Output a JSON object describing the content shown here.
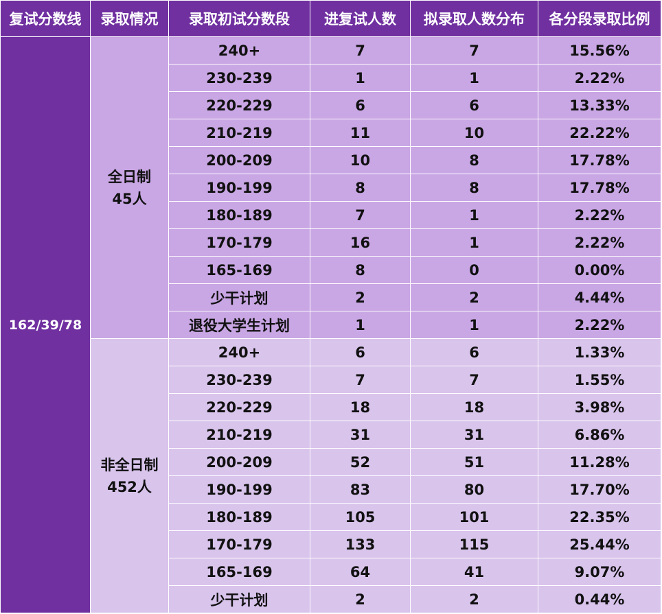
{
  "headers": [
    "复试分数线",
    "录取情况",
    "录取初试分数段",
    "进复试人数",
    "拟录取人数分布",
    "各分段录取比例"
  ],
  "score_line": "162/39/78",
  "groups": [
    {
      "name": "全日制",
      "count": "45人",
      "rows": [
        {
          "range": "240+",
          "entered": "7",
          "admitted": "7",
          "ratio": "15.56%"
        },
        {
          "range": "230-239",
          "entered": "1",
          "admitted": "1",
          "ratio": "2.22%"
        },
        {
          "range": "220-229",
          "entered": "6",
          "admitted": "6",
          "ratio": "13.33%"
        },
        {
          "range": "210-219",
          "entered": "11",
          "admitted": "10",
          "ratio": "22.22%"
        },
        {
          "range": "200-209",
          "entered": "10",
          "admitted": "8",
          "ratio": "17.78%"
        },
        {
          "range": "190-199",
          "entered": "8",
          "admitted": "8",
          "ratio": "17.78%"
        },
        {
          "range": "180-189",
          "entered": "7",
          "admitted": "1",
          "ratio": "2.22%"
        },
        {
          "range": "170-179",
          "entered": "16",
          "admitted": "1",
          "ratio": "2.22%"
        },
        {
          "range": "165-169",
          "entered": "8",
          "admitted": "0",
          "ratio": "0.00%"
        },
        {
          "range": "少干计划",
          "entered": "2",
          "admitted": "2",
          "ratio": "4.44%"
        },
        {
          "range": "退役大学生计划",
          "entered": "1",
          "admitted": "1",
          "ratio": "2.22%"
        }
      ]
    },
    {
      "name": "非全日制",
      "count": "452人",
      "rows": [
        {
          "range": "240+",
          "entered": "6",
          "admitted": "6",
          "ratio": "1.33%"
        },
        {
          "range": "230-239",
          "entered": "7",
          "admitted": "7",
          "ratio": "1.55%"
        },
        {
          "range": "220-229",
          "entered": "18",
          "admitted": "18",
          "ratio": "3.98%"
        },
        {
          "range": "210-219",
          "entered": "31",
          "admitted": "31",
          "ratio": "6.86%"
        },
        {
          "range": "200-209",
          "entered": "52",
          "admitted": "51",
          "ratio": "11.28%"
        },
        {
          "range": "190-199",
          "entered": "83",
          "admitted": "80",
          "ratio": "17.70%"
        },
        {
          "range": "180-189",
          "entered": "105",
          "admitted": "101",
          "ratio": "22.35%"
        },
        {
          "range": "170-179",
          "entered": "133",
          "admitted": "115",
          "ratio": "25.44%"
        },
        {
          "range": "165-169",
          "entered": "64",
          "admitted": "41",
          "ratio": "9.07%"
        },
        {
          "range": "少干计划",
          "entered": "2",
          "admitted": "2",
          "ratio": "0.44%"
        }
      ]
    }
  ],
  "colors": {
    "header_bg": "#7030a0",
    "full_time_bg": "#c9a6e4",
    "part_time_bg": "#d9c4ec"
  }
}
